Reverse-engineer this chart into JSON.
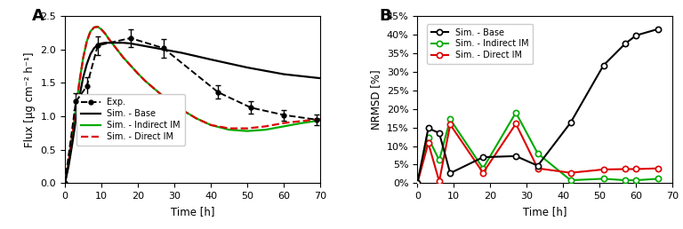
{
  "panel_A": {
    "exp_x": [
      0,
      3,
      6,
      9,
      18,
      27,
      42,
      51,
      60,
      69
    ],
    "exp_y": [
      0.0,
      1.22,
      1.45,
      2.06,
      2.17,
      2.02,
      1.36,
      1.13,
      1.02,
      0.95
    ],
    "exp_err": [
      0.0,
      0.12,
      0.13,
      0.14,
      0.13,
      0.14,
      0.1,
      0.09,
      0.08,
      0.08
    ],
    "base_x": [
      0,
      1,
      2,
      3,
      4,
      5,
      6,
      7,
      8,
      9,
      10,
      11,
      12,
      14,
      16,
      18,
      20,
      22,
      25,
      28,
      32,
      36,
      40,
      45,
      50,
      55,
      60,
      65,
      70
    ],
    "base_y": [
      0,
      0.25,
      0.58,
      0.95,
      1.3,
      1.58,
      1.78,
      1.93,
      2.02,
      2.07,
      2.09,
      2.1,
      2.1,
      2.1,
      2.1,
      2.09,
      2.07,
      2.05,
      2.02,
      1.99,
      1.95,
      1.9,
      1.85,
      1.79,
      1.73,
      1.68,
      1.63,
      1.6,
      1.57
    ],
    "indirect_x": [
      0,
      1,
      2,
      3,
      4,
      5,
      6,
      7,
      8,
      9,
      10,
      11,
      12,
      14,
      16,
      18,
      20,
      22,
      25,
      28,
      32,
      36,
      40,
      45,
      50,
      55,
      60,
      65,
      70
    ],
    "indirect_y": [
      0,
      0.3,
      0.7,
      1.12,
      1.52,
      1.87,
      2.12,
      2.27,
      2.33,
      2.34,
      2.3,
      2.24,
      2.16,
      2.02,
      1.88,
      1.76,
      1.64,
      1.53,
      1.39,
      1.25,
      1.1,
      0.97,
      0.87,
      0.8,
      0.78,
      0.8,
      0.85,
      0.9,
      0.94
    ],
    "direct_x": [
      0,
      1,
      2,
      3,
      4,
      5,
      6,
      7,
      8,
      9,
      10,
      11,
      12,
      14,
      16,
      18,
      20,
      22,
      25,
      28,
      32,
      36,
      40,
      45,
      50,
      55,
      60,
      65,
      70
    ],
    "direct_y": [
      0,
      0.3,
      0.7,
      1.12,
      1.52,
      1.87,
      2.12,
      2.27,
      2.33,
      2.34,
      2.3,
      2.24,
      2.16,
      2.02,
      1.88,
      1.76,
      1.64,
      1.53,
      1.39,
      1.25,
      1.1,
      0.97,
      0.87,
      0.82,
      0.82,
      0.85,
      0.9,
      0.93,
      0.96
    ],
    "xlabel": "Time [h]",
    "ylabel": "Flux [μg cm⁻² h⁻¹]",
    "xlim": [
      0,
      70
    ],
    "ylim": [
      0,
      2.5
    ],
    "yticks": [
      0.0,
      0.5,
      1.0,
      1.5,
      2.0,
      2.5
    ],
    "xticks": [
      0,
      10,
      20,
      30,
      40,
      50,
      60,
      70
    ]
  },
  "panel_B": {
    "base_x": [
      0,
      3,
      6,
      9,
      18,
      27,
      33,
      42,
      51,
      57,
      60,
      66
    ],
    "base_y": [
      0,
      14.8,
      13.5,
      2.7,
      7.0,
      7.3,
      4.7,
      16.3,
      31.7,
      37.6,
      39.8,
      41.5
    ],
    "indirect_x": [
      0,
      3,
      6,
      9,
      18,
      27,
      33,
      42,
      51,
      57,
      60,
      66
    ],
    "indirect_y": [
      0,
      12.2,
      6.2,
      17.2,
      4.0,
      19.0,
      8.0,
      0.8,
      1.2,
      0.8,
      0.8,
      1.2
    ],
    "direct_x": [
      0,
      3,
      6,
      9,
      18,
      27,
      33,
      42,
      51,
      57,
      60,
      66
    ],
    "direct_y": [
      0,
      10.8,
      0.5,
      15.8,
      2.8,
      16.0,
      4.0,
      2.8,
      3.7,
      3.8,
      3.8,
      4.0
    ],
    "xlabel": "Time [h]",
    "ylabel": "NRMSD [%]",
    "xlim": [
      0,
      70
    ],
    "ylim": [
      0,
      45
    ],
    "ytick_vals": [
      0,
      5,
      10,
      15,
      20,
      25,
      30,
      35,
      40,
      45
    ],
    "ytick_labels": [
      "0%",
      "5%",
      "10%",
      "15%",
      "20%",
      "25%",
      "30%",
      "35%",
      "40%",
      "45%"
    ],
    "xticks": [
      0,
      10,
      20,
      30,
      40,
      50,
      60,
      70
    ]
  },
  "colors": {
    "exp": "#000000",
    "base": "#000000",
    "indirect": "#00aa00",
    "direct": "#dd0000"
  },
  "figsize": [
    7.68,
    2.58
  ],
  "dpi": 100
}
